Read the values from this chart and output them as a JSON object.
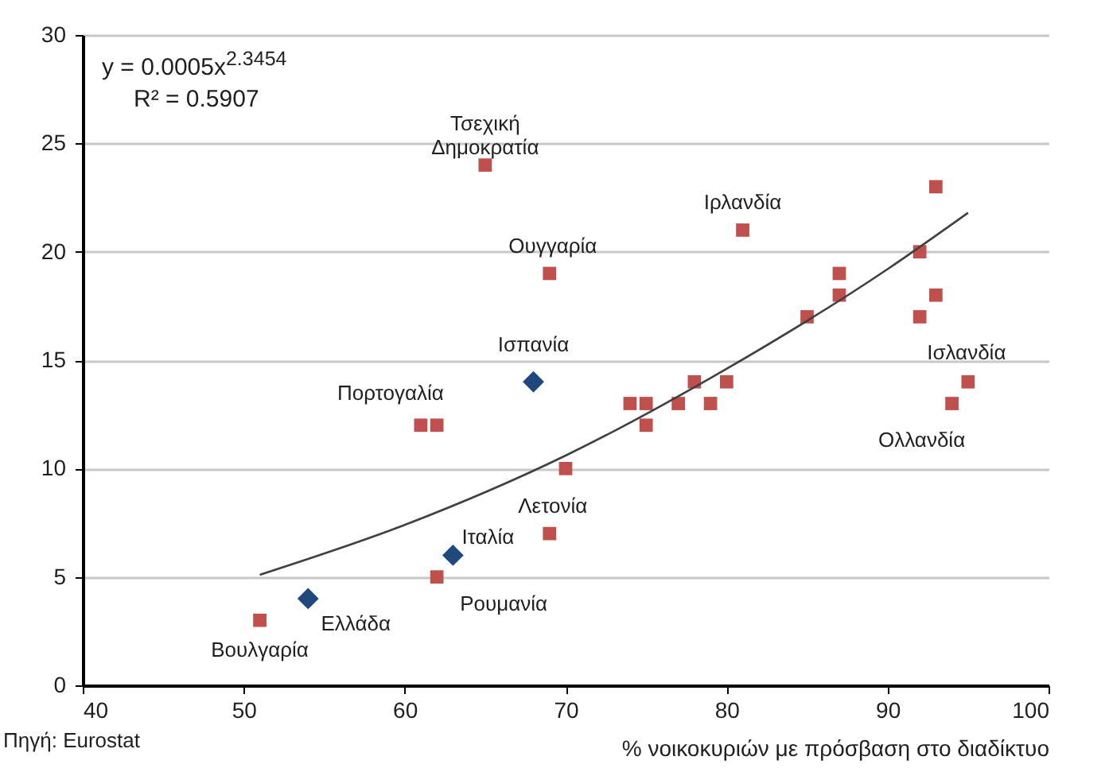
{
  "chart_data": {
    "type": "scatter",
    "xlabel": "% νοικοκυριών με πρόσβαση στο διαδίκτυο",
    "xlim": [
      40,
      100
    ],
    "xticks": [
      40,
      50,
      60,
      70,
      80,
      90,
      100
    ],
    "ylim": [
      0,
      30
    ],
    "yticks": [
      0,
      5,
      10,
      15,
      20,
      25,
      30
    ],
    "grid": "y",
    "series": [
      {
        "marker": "square",
        "color": "#c0504d",
        "x": [
          51,
          62,
          61,
          62,
          65,
          69,
          69,
          70,
          81,
          74,
          75,
          75,
          77,
          78,
          79,
          80,
          85,
          87,
          87,
          92,
          92,
          93,
          93,
          94,
          95
        ],
        "values": [
          3,
          5,
          12,
          12,
          24,
          19,
          7,
          10,
          21,
          13,
          13,
          12,
          13,
          14,
          13,
          14,
          17,
          19,
          18,
          20,
          17,
          23,
          18,
          13,
          14
        ]
      },
      {
        "marker": "diamond",
        "color": "#1f497d",
        "x": [
          54,
          63,
          68
        ],
        "values": [
          4,
          6,
          14
        ]
      },
      {
        "type": "line",
        "color": "#404040",
        "line_style": "solid",
        "x": [
          51,
          60,
          70,
          80,
          90,
          95
        ],
        "values": [
          5.1,
          7.4,
          10.6,
          14.6,
          19.2,
          21.8
        ]
      }
    ],
    "annotations": [
      {
        "text": "Τσεχική Δημοκρατία",
        "x": 65,
        "y": 24
      },
      {
        "text": "Ουγγαρία",
        "x": 69,
        "y": 19
      },
      {
        "text": "Ισπανία",
        "x": 68,
        "y": 14
      },
      {
        "text": "Πορτογαλία",
        "x": 61,
        "y": 12
      },
      {
        "text": "Ιρλανδία",
        "x": 81,
        "y": 21
      },
      {
        "text": "Ισλανδία",
        "x": 95,
        "y": 14
      },
      {
        "text": "Ολλανδία",
        "x": 94,
        "y": 13
      },
      {
        "text": "Λετονία",
        "x": 69,
        "y": 7
      },
      {
        "text": "Ιταλία",
        "x": 63,
        "y": 6
      },
      {
        "text": "Ρουμανία",
        "x": 62,
        "y": 5
      },
      {
        "text": "Ελλάδα",
        "x": 54,
        "y": 4
      },
      {
        "text": "Βουλγαρία",
        "x": 51,
        "y": 3
      },
      "y = 0.0005x$^{2.3454}$",
      "R² = 0.5907",
      "Πηγή: Eurostat"
    ]
  }
}
